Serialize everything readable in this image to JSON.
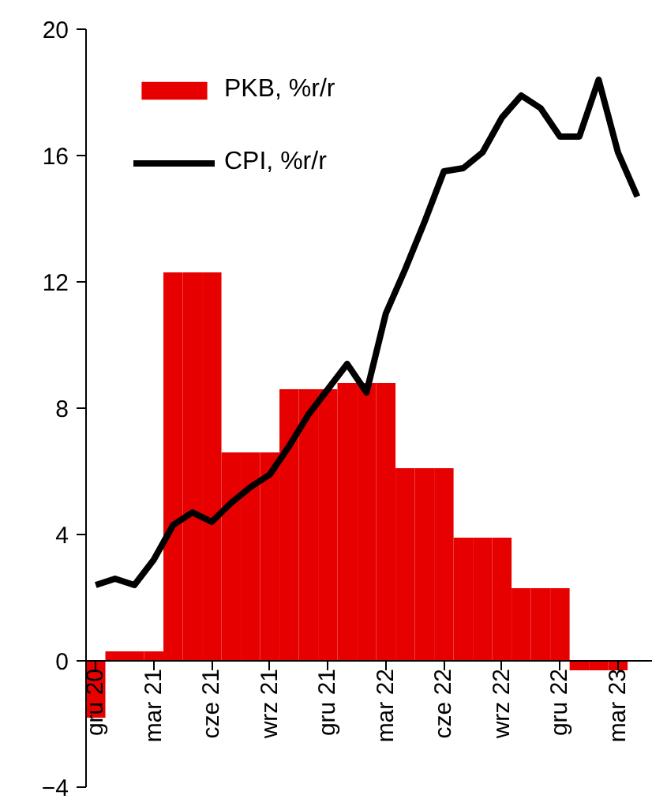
{
  "chart_data": {
    "type": "bar",
    "categories": [
      "gru 20",
      null,
      null,
      "mar 21",
      null,
      null,
      "cze 21",
      null,
      null,
      "wrz 21",
      null,
      null,
      "gru 21",
      null,
      null,
      "mar 22",
      null,
      null,
      "cze 22",
      null,
      null,
      "wrz 22",
      null,
      null,
      "gru 22",
      null,
      null,
      "mar 23",
      null
    ],
    "series": [
      {
        "name": "PKB, %r/r",
        "color": "#e60000",
        "values": [
          -1.8,
          0.3,
          0.3,
          0.3,
          12.3,
          12.3,
          12.3,
          6.6,
          6.6,
          6.6,
          8.6,
          8.6,
          8.6,
          8.8,
          8.8,
          8.8,
          6.1,
          6.1,
          6.1,
          3.9,
          3.9,
          3.9,
          2.3,
          2.3,
          2.3,
          -0.3,
          -0.3,
          -0.3,
          null
        ]
      },
      {
        "name": "CPI, %r/r",
        "type": "line",
        "color": "#000000",
        "values": [
          2.4,
          2.6,
          2.4,
          3.2,
          4.3,
          4.7,
          4.4,
          5.0,
          5.5,
          5.9,
          6.8,
          7.8,
          8.6,
          9.4,
          8.5,
          11.0,
          12.4,
          13.9,
          15.5,
          15.6,
          16.1,
          17.2,
          17.9,
          17.5,
          16.6,
          16.6,
          18.4,
          16.1,
          14.7
        ]
      }
    ],
    "ylim": [
      -4,
      20
    ],
    "yticks": [
      -4,
      0,
      4,
      8,
      12,
      16,
      20
    ],
    "grid": false,
    "legend": "top left",
    "line_style": "solid",
    "marker": "none"
  }
}
